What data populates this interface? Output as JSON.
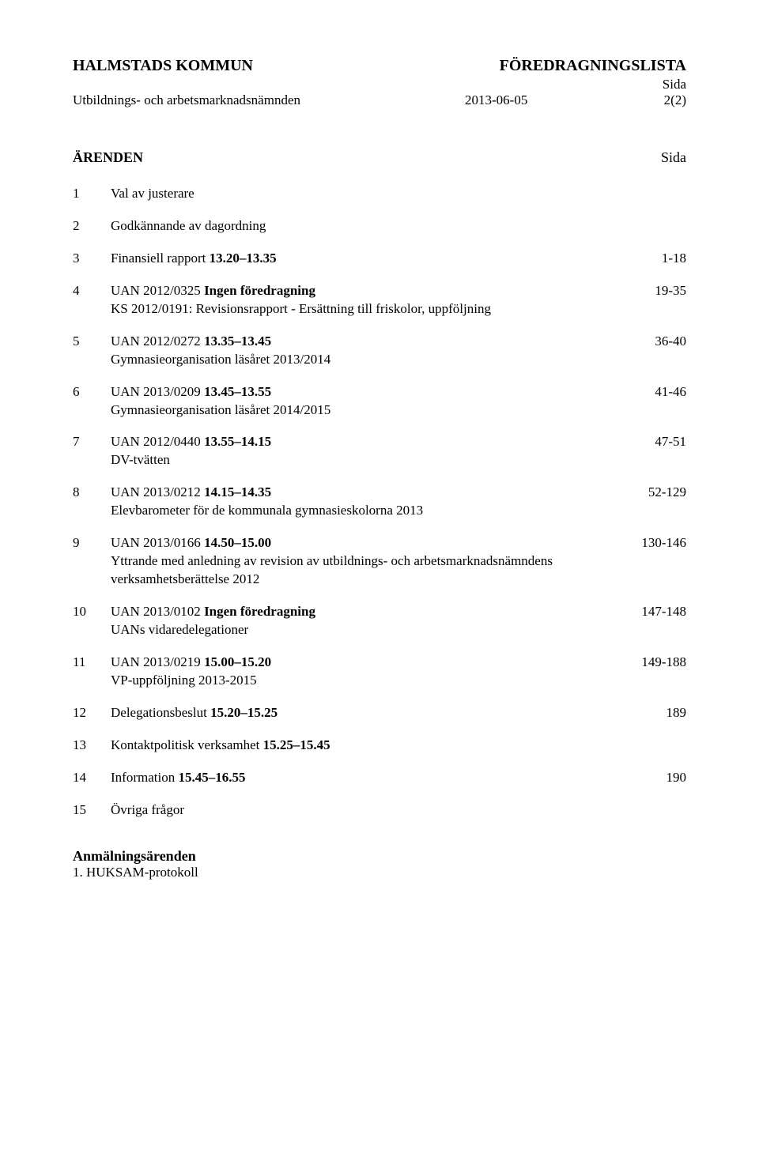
{
  "header": {
    "org": "HALMSTADS KOMMUN",
    "doc_type": "FÖREDRAGNINGSLISTA",
    "side_label": "Sida",
    "committee": "Utbildnings- och arbetsmarknadsnämnden",
    "date": "2013-06-05",
    "page_of": "2(2)"
  },
  "section": {
    "title": "ÄRENDEN",
    "side": "Sida"
  },
  "items": [
    {
      "num": "1",
      "line1": "Val av justerare",
      "bold1": "",
      "pages": ""
    },
    {
      "num": "2",
      "line1": "Godkännande av dagordning",
      "bold1": "",
      "pages": ""
    },
    {
      "num": "3",
      "line1": "Finansiell rapport ",
      "bold1": "13.20–13.35",
      "pages": "1-18"
    },
    {
      "num": "4",
      "line1": "UAN 2012/0325 ",
      "bold1": "Ingen föredragning",
      "line2": "KS 2012/0191: Revisionsrapport - Ersättning till friskolor, uppföljning",
      "pages": "19-35"
    },
    {
      "num": "5",
      "line1": "UAN 2012/0272 ",
      "bold1": "13.35–13.45",
      "line2": "Gymnasieorganisation läsåret 2013/2014",
      "pages": "36-40"
    },
    {
      "num": "6",
      "line1": "UAN 2013/0209 ",
      "bold1": "13.45–13.55",
      "line2": "Gymnasieorganisation läsåret 2014/2015",
      "pages": "41-46"
    },
    {
      "num": "7",
      "line1": "UAN 2012/0440 ",
      "bold1": "13.55–14.15",
      "line2": "DV-tvätten",
      "pages": "47-51"
    },
    {
      "num": "8",
      "line1": "UAN 2013/0212 ",
      "bold1": "14.15–14.35",
      "line2": "Elevbarometer för de kommunala gymnasieskolorna 2013",
      "pages": "52-129"
    },
    {
      "num": "9",
      "line1": "UAN 2013/0166 ",
      "bold1": "14.50–15.00",
      "line2": "Yttrande med anledning av revision av utbildnings- och arbetsmarknadsnämndens verksamhetsberättelse 2012",
      "pages": "130-146"
    },
    {
      "num": "10",
      "line1": "UAN 2013/0102 ",
      "bold1": "Ingen föredragning",
      "line2": "UANs vidaredelegationer",
      "pages": "147-148"
    },
    {
      "num": "11",
      "line1": "UAN 2013/0219 ",
      "bold1": "15.00–15.20",
      "line2": "VP-uppföljning 2013-2015",
      "pages": "149-188"
    },
    {
      "num": "12",
      "line1": "Delegationsbeslut ",
      "bold1": "15.20–15.25",
      "pages": "189"
    },
    {
      "num": "13",
      "line1": "Kontaktpolitisk verksamhet ",
      "bold1": "15.25–15.45",
      "pages": ""
    },
    {
      "num": "14",
      "line1": "Information ",
      "bold1": "15.45–16.55",
      "pages": "190"
    },
    {
      "num": "15",
      "line1": "Övriga frågor",
      "bold1": "",
      "pages": ""
    }
  ],
  "footer": {
    "heading": "Anmälningsärenden",
    "sub": "1.  HUKSAM-protokoll"
  }
}
